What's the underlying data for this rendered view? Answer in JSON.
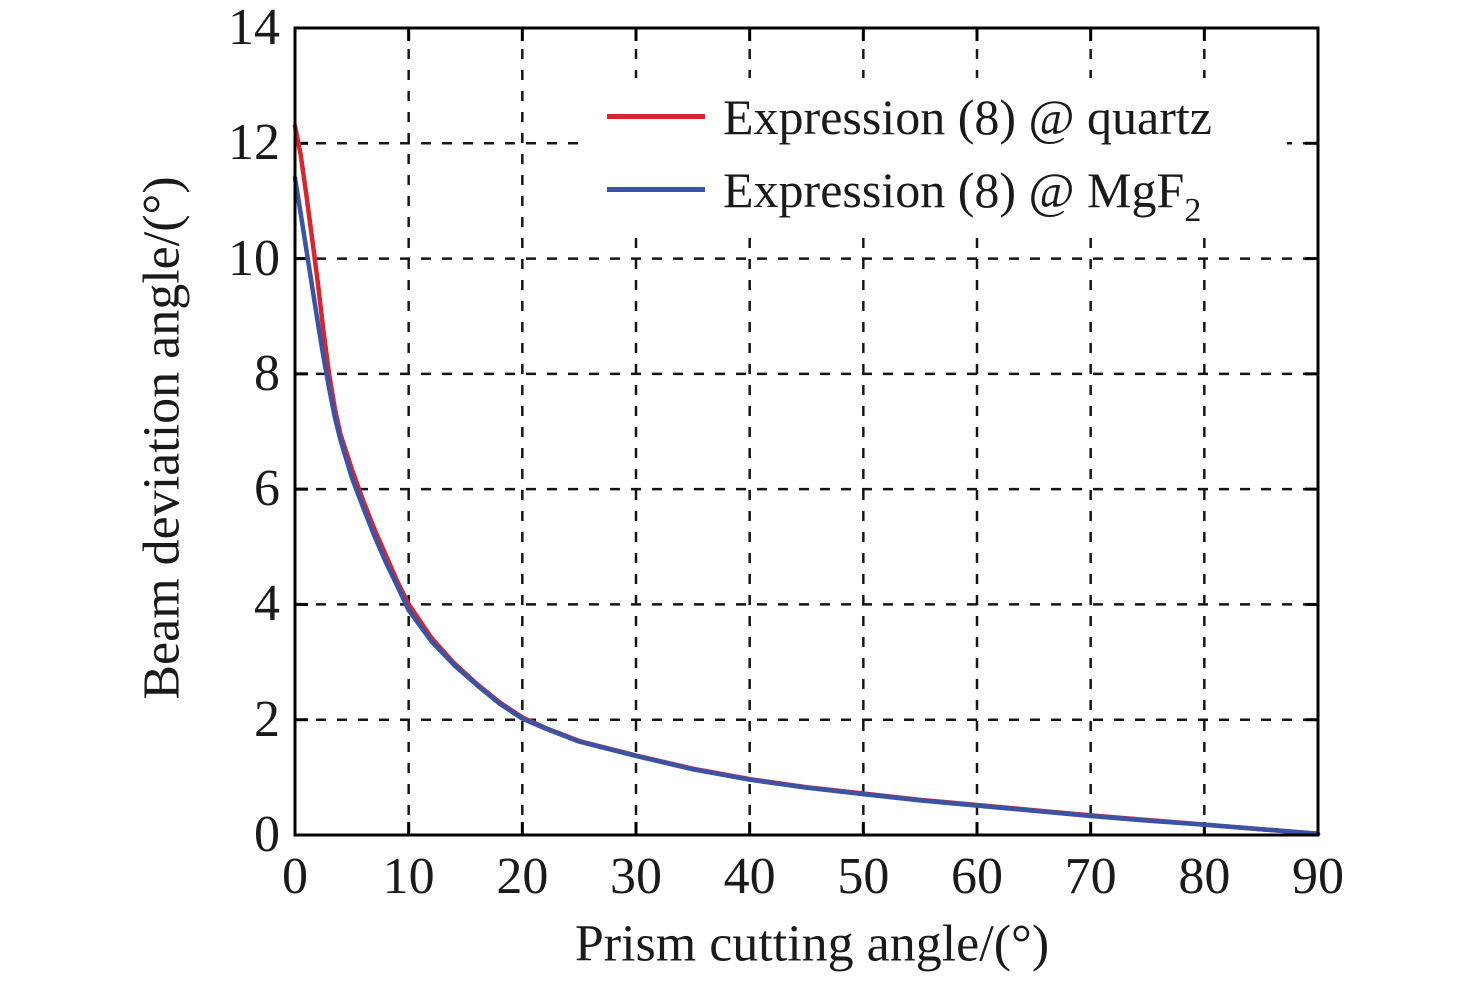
{
  "figure": {
    "xlabel": "Prism cutting angle/(°)",
    "ylabel": "Beam deviation angle/(°)",
    "legend": [
      {
        "label_main": "Expression (8) @ quartz",
        "label_sub": ""
      },
      {
        "label_main": "Expression (8) @ MgF",
        "label_sub": "2"
      }
    ]
  },
  "chart_data": {
    "type": "line",
    "title": "",
    "xlabel": "Prism cutting angle/(°)",
    "ylabel": "Beam deviation angle/(°)",
    "xlim": [
      0,
      90
    ],
    "ylim": [
      0,
      14
    ],
    "xticks": [
      0,
      10,
      20,
      30,
      40,
      50,
      60,
      70,
      80,
      90
    ],
    "yticks": [
      0,
      2,
      4,
      6,
      8,
      10,
      12,
      14
    ],
    "grid": "dashed",
    "box": true,
    "legend_position": "upper-right-inside",
    "series": [
      {
        "name": "Expression (8) @ quartz",
        "color": "#d9252e",
        "x": [
          0,
          0.5,
          1,
          1.5,
          2,
          2.5,
          3,
          3.5,
          4,
          5,
          6,
          7,
          8,
          9,
          10,
          12,
          14,
          16,
          18,
          20,
          22,
          25,
          30,
          35,
          40,
          45,
          50,
          55,
          60,
          65,
          70,
          75,
          80,
          85,
          90
        ],
        "y": [
          12.3,
          11.8,
          11.1,
          10.35,
          9.6,
          8.75,
          8.0,
          7.4,
          6.95,
          6.35,
          5.8,
          5.3,
          4.85,
          4.4,
          4.0,
          3.42,
          2.98,
          2.62,
          2.3,
          2.04,
          1.86,
          1.63,
          1.38,
          1.15,
          0.97,
          0.83,
          0.72,
          0.61,
          0.52,
          0.43,
          0.34,
          0.26,
          0.18,
          0.1,
          0.02
        ]
      },
      {
        "name": "Expression (8) @ MgF2",
        "color": "#3a53a4",
        "x": [
          0,
          0.5,
          1,
          1.5,
          2,
          2.5,
          3,
          3.5,
          4,
          5,
          6,
          7,
          8,
          9,
          10,
          12,
          14,
          16,
          18,
          20,
          22,
          25,
          30,
          35,
          40,
          45,
          50,
          55,
          60,
          65,
          70,
          75,
          80,
          85,
          90
        ],
        "y": [
          11.4,
          10.78,
          10.15,
          9.52,
          8.9,
          8.3,
          7.75,
          7.25,
          6.85,
          6.2,
          5.68,
          5.18,
          4.73,
          4.32,
          3.9,
          3.36,
          2.95,
          2.6,
          2.28,
          2.02,
          1.85,
          1.62,
          1.37,
          1.14,
          0.96,
          0.82,
          0.71,
          0.6,
          0.51,
          0.42,
          0.33,
          0.25,
          0.18,
          0.1,
          0.02
        ]
      }
    ]
  }
}
